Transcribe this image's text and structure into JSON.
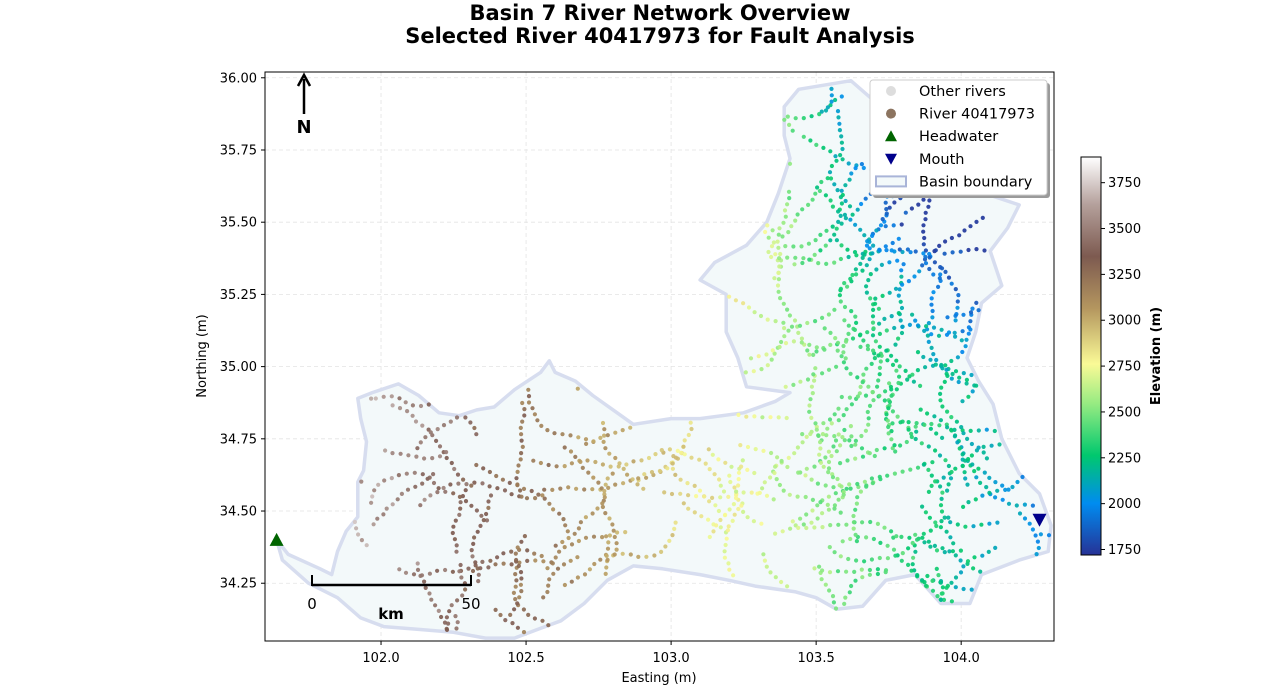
{
  "chart_data": {
    "type": "scatter",
    "title": [
      "Basin 7 River Network Overview",
      "Selected River 40417973 for Fault Analysis"
    ],
    "xlabel": "Easting (m)",
    "ylabel": "Northing (m)",
    "xlim": [
      101.6,
      104.32
    ],
    "ylim": [
      34.05,
      36.02
    ],
    "xticks": [
      102.0,
      102.5,
      103.0,
      103.5,
      104.0
    ],
    "xtick_labels": [
      "102.0",
      "102.5",
      "103.0",
      "103.5",
      "104.0"
    ],
    "yticks": [
      34.25,
      34.5,
      34.75,
      35.0,
      35.25,
      35.5,
      35.75,
      36.0
    ],
    "ytick_labels": [
      "34.25",
      "34.50",
      "34.75",
      "35.00",
      "35.25",
      "35.50",
      "35.75",
      "36.00"
    ],
    "grid": true,
    "legend": {
      "placement": "top-right",
      "entries": [
        {
          "label": "Other rivers",
          "marker": "circle",
          "color": "#dddddd"
        },
        {
          "label": "River 40417973",
          "marker": "circle",
          "color": "#8c7460"
        },
        {
          "label": "Headwater",
          "marker": "triangle-up",
          "color": "#006400"
        },
        {
          "label": "Mouth",
          "marker": "triangle-down",
          "color": "#00008b"
        },
        {
          "label": "Basin boundary",
          "marker": "rect",
          "color": "#a9b4d8"
        }
      ]
    },
    "colorbar": {
      "label": "Elevation (m)",
      "range": [
        1720,
        3890
      ],
      "ticks": [
        1750,
        2000,
        2250,
        2500,
        2750,
        3000,
        3250,
        3500,
        3750
      ],
      "tick_labels": [
        "1750",
        "2000",
        "2250",
        "2500",
        "2750",
        "3000",
        "3250",
        "3500",
        "3750"
      ],
      "colormap": "terrain"
    },
    "basin_boundary": [
      [
        101.64,
        34.4
      ],
      [
        101.68,
        34.35
      ],
      [
        101.79,
        34.3
      ],
      [
        101.83,
        34.28
      ],
      [
        101.85,
        34.36
      ],
      [
        101.88,
        34.43
      ],
      [
        101.92,
        34.48
      ],
      [
        101.92,
        34.6
      ],
      [
        101.94,
        34.64
      ],
      [
        101.95,
        34.74
      ],
      [
        101.93,
        34.82
      ],
      [
        101.92,
        34.89
      ],
      [
        101.97,
        34.91
      ],
      [
        102.06,
        34.94
      ],
      [
        102.13,
        34.9
      ],
      [
        102.2,
        34.84
      ],
      [
        102.27,
        34.83
      ],
      [
        102.33,
        34.85
      ],
      [
        102.39,
        34.86
      ],
      [
        102.46,
        34.92
      ],
      [
        102.55,
        34.98
      ],
      [
        102.58,
        35.02
      ],
      [
        102.6,
        34.98
      ],
      [
        102.67,
        34.95
      ],
      [
        102.73,
        34.9
      ],
      [
        102.8,
        34.85
      ],
      [
        102.87,
        34.8
      ],
      [
        103.0,
        34.82
      ],
      [
        103.1,
        34.82
      ],
      [
        103.25,
        34.84
      ],
      [
        103.36,
        34.88
      ],
      [
        103.41,
        34.91
      ],
      [
        103.26,
        34.93
      ],
      [
        103.23,
        35.03
      ],
      [
        103.19,
        35.12
      ],
      [
        103.19,
        35.25
      ],
      [
        103.1,
        35.3
      ],
      [
        103.15,
        35.36
      ],
      [
        103.26,
        35.42
      ],
      [
        103.33,
        35.5
      ],
      [
        103.37,
        35.6
      ],
      [
        103.41,
        35.72
      ],
      [
        103.39,
        35.8
      ],
      [
        103.39,
        35.9
      ],
      [
        103.44,
        35.96
      ],
      [
        103.62,
        35.99
      ],
      [
        103.7,
        35.92
      ],
      [
        103.78,
        35.85
      ],
      [
        103.8,
        35.78
      ],
      [
        103.87,
        35.74
      ],
      [
        103.98,
        35.7
      ],
      [
        104.08,
        35.6
      ],
      [
        104.2,
        35.56
      ],
      [
        104.16,
        35.48
      ],
      [
        104.1,
        35.4
      ],
      [
        104.14,
        35.28
      ],
      [
        104.07,
        35.22
      ],
      [
        104.05,
        35.12
      ],
      [
        104.02,
        35.03
      ],
      [
        104.06,
        34.95
      ],
      [
        104.11,
        34.87
      ],
      [
        104.14,
        34.75
      ],
      [
        104.2,
        34.63
      ],
      [
        104.27,
        34.56
      ],
      [
        104.31,
        34.45
      ],
      [
        104.3,
        34.36
      ],
      [
        104.2,
        34.33
      ],
      [
        104.07,
        34.28
      ],
      [
        104.03,
        34.18
      ],
      [
        103.93,
        34.18
      ],
      [
        103.84,
        34.28
      ],
      [
        103.74,
        34.26
      ],
      [
        103.66,
        34.17
      ],
      [
        103.57,
        34.16
      ],
      [
        103.5,
        34.2
      ],
      [
        103.43,
        34.22
      ],
      [
        103.36,
        34.23
      ],
      [
        103.29,
        34.24
      ],
      [
        103.2,
        34.26
      ],
      [
        103.1,
        34.28
      ],
      [
        102.97,
        34.3
      ],
      [
        102.87,
        34.31
      ],
      [
        102.78,
        34.26
      ],
      [
        102.7,
        34.18
      ],
      [
        102.62,
        34.12
      ],
      [
        102.54,
        34.09
      ],
      [
        102.46,
        34.06
      ],
      [
        102.36,
        34.06
      ],
      [
        102.25,
        34.08
      ],
      [
        102.13,
        34.09
      ],
      [
        102.01,
        34.1
      ],
      [
        101.93,
        34.13
      ],
      [
        101.85,
        34.2
      ],
      [
        101.75,
        34.25
      ],
      [
        101.66,
        34.33
      ],
      [
        101.64,
        34.4
      ]
    ],
    "headwater": {
      "x": 101.64,
      "y": 34.4
    },
    "mouth": {
      "x": 104.27,
      "y": 34.47
    },
    "north_arrow": {
      "label": "N"
    },
    "scale_bar": {
      "start_label": "0",
      "end_label": "50",
      "unit_label": "km"
    }
  }
}
